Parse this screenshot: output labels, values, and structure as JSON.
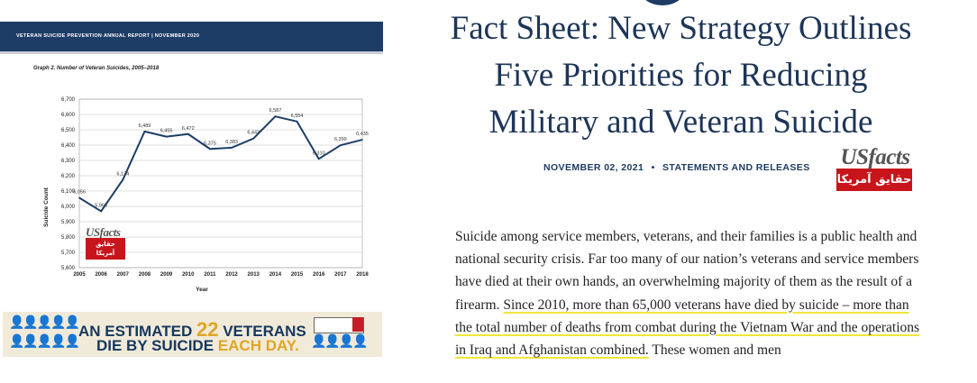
{
  "report": {
    "banner": "VETERAN SUICIDE PREVENTION ANNUAL REPORT  |  NOVEMBER 2020"
  },
  "chart_data": {
    "type": "line",
    "title": "Graph 2. Number of Veteran Suicides, 2005–2018",
    "xlabel": "Year",
    "ylabel": "Suicide Count",
    "ylim": [
      5600,
      6700
    ],
    "yticks": [
      "5,600",
      "5,700",
      "5,800",
      "5,900",
      "6,000",
      "6,100",
      "6,200",
      "6,300",
      "6,400",
      "6,500",
      "6,600",
      "6,700"
    ],
    "ytick_values": [
      5600,
      5700,
      5800,
      5900,
      6000,
      6100,
      6200,
      6300,
      6400,
      6500,
      6600,
      6700
    ],
    "categories": [
      "2005",
      "2006",
      "2007",
      "2008",
      "2009",
      "2010",
      "2011",
      "2012",
      "2013",
      "2014",
      "2015",
      "2016",
      "2017",
      "2018"
    ],
    "values": [
      6056,
      5968,
      6174,
      6489,
      6455,
      6472,
      6375,
      6383,
      6443,
      6587,
      6554,
      6310,
      6399,
      6435
    ],
    "value_labels": [
      "6,056",
      "5,968",
      "6,174",
      "6,489",
      "6,455",
      "6,472",
      "6,375",
      "6,383",
      "6,443",
      "6,587",
      "6,554",
      "6,310",
      "6,399",
      "6,435"
    ],
    "grid": true,
    "line_color": "#1d3d66"
  },
  "banner": {
    "line1_prefix": "AN ESTIMATED",
    "number": "22",
    "line1_suffix": "VETERANS",
    "line2_prefix": "DIE BY SUICIDE",
    "line2_suffix": "EACH DAY.",
    "accent_color": "#e0a526",
    "text_color": "#15385e"
  },
  "watermark": {
    "word": "USfacts",
    "arabic": "حقايق آمريكا"
  },
  "article": {
    "headline_lines": [
      "Fact Sheet: New Strategy Outlines",
      "Five Priorities for Reducing",
      "Military and Veteran Suicide"
    ],
    "date": "NOVEMBER 02, 2021",
    "separator": "•",
    "category": "STATEMENTS AND RELEASES",
    "body_plain": "Suicide among service members, veterans, and their families is a public health and national security crisis. Far too many of our nation’s veterans and service members have died at their own hands, an overwhelming majority of them as the result of a firearm. ",
    "body_highlight": "Since 2010, more than 65,000 veterans have died by suicide – more than the total number of deaths from combat during the Vietnam War and the operations in Iraq and Afghanistan combined.",
    "body_tail": " These women and men"
  }
}
